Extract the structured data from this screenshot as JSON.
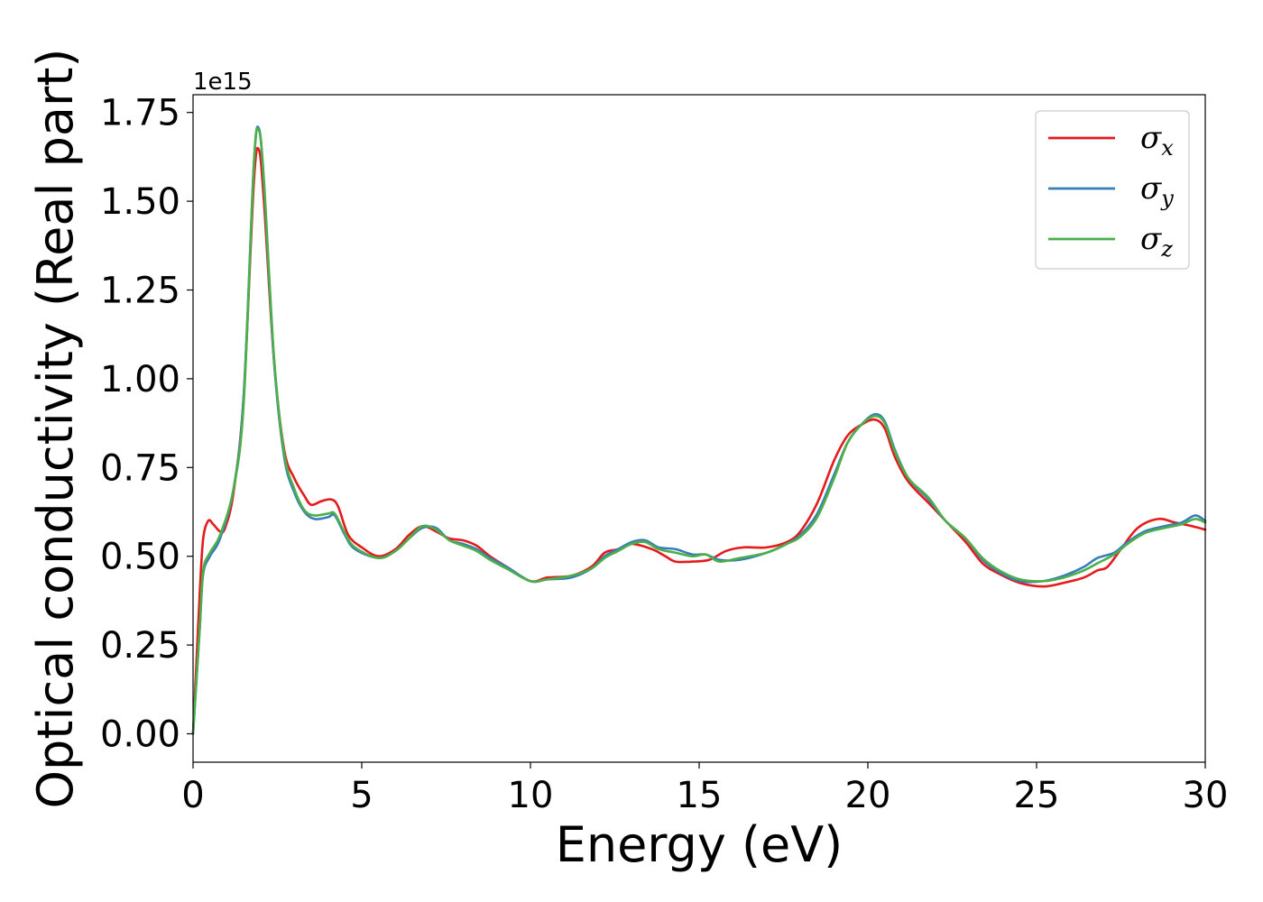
{
  "chart_data": {
    "type": "line",
    "xlabel": "Energy (eV)",
    "ylabel": "Optical conductivity (Real part)",
    "y_offset_label": "1e15",
    "y_multiplier": 1000000000000000.0,
    "xlim": [
      0,
      30
    ],
    "ylim": [
      -0.08,
      1.8
    ],
    "x_ticks": [
      0,
      5,
      10,
      15,
      20,
      25,
      30
    ],
    "x_tick_labels": [
      "0",
      "5",
      "10",
      "15",
      "20",
      "25",
      "30"
    ],
    "y_ticks": [
      0,
      0.25,
      0.5,
      0.75,
      1.0,
      1.25,
      1.5,
      1.75
    ],
    "y_tick_labels": [
      "0.00",
      "0.25",
      "0.50",
      "0.75",
      "1.00",
      "1.25",
      "1.50",
      "1.75"
    ],
    "grid": false,
    "legend_position": "top-right",
    "series": [
      {
        "name": "σx",
        "symbol": "σ",
        "subscript": "x",
        "color": "#e41a1c",
        "points": [
          [
            0,
            0
          ],
          [
            0.1,
            0.2
          ],
          [
            0.2,
            0.4
          ],
          [
            0.3,
            0.55
          ],
          [
            0.45,
            0.6
          ],
          [
            0.6,
            0.59
          ],
          [
            0.8,
            0.57
          ],
          [
            0.95,
            0.58
          ],
          [
            1.2,
            0.68
          ],
          [
            1.5,
            0.95
          ],
          [
            1.8,
            1.55
          ],
          [
            1.95,
            1.645
          ],
          [
            2.1,
            1.5
          ],
          [
            2.4,
            1.05
          ],
          [
            2.7,
            0.8
          ],
          [
            3.0,
            0.72
          ],
          [
            3.3,
            0.67
          ],
          [
            3.5,
            0.645
          ],
          [
            3.8,
            0.655
          ],
          [
            4.1,
            0.66
          ],
          [
            4.3,
            0.64
          ],
          [
            4.6,
            0.56
          ],
          [
            5.0,
            0.525
          ],
          [
            5.5,
            0.5
          ],
          [
            6.0,
            0.52
          ],
          [
            6.4,
            0.56
          ],
          [
            6.8,
            0.585
          ],
          [
            7.2,
            0.57
          ],
          [
            7.6,
            0.55
          ],
          [
            8.0,
            0.545
          ],
          [
            8.4,
            0.53
          ],
          [
            8.8,
            0.5
          ],
          [
            9.3,
            0.47
          ],
          [
            10.0,
            0.43
          ],
          [
            10.5,
            0.44
          ],
          [
            11.2,
            0.445
          ],
          [
            11.8,
            0.47
          ],
          [
            12.2,
            0.51
          ],
          [
            12.6,
            0.52
          ],
          [
            13.0,
            0.535
          ],
          [
            13.6,
            0.52
          ],
          [
            14.0,
            0.5
          ],
          [
            14.3,
            0.485
          ],
          [
            14.8,
            0.485
          ],
          [
            15.3,
            0.49
          ],
          [
            15.8,
            0.515
          ],
          [
            16.3,
            0.525
          ],
          [
            17.0,
            0.525
          ],
          [
            17.6,
            0.54
          ],
          [
            18.0,
            0.57
          ],
          [
            18.5,
            0.65
          ],
          [
            19.0,
            0.77
          ],
          [
            19.4,
            0.84
          ],
          [
            19.8,
            0.87
          ],
          [
            20.2,
            0.885
          ],
          [
            20.5,
            0.86
          ],
          [
            20.8,
            0.78
          ],
          [
            21.2,
            0.71
          ],
          [
            21.8,
            0.65
          ],
          [
            22.3,
            0.6
          ],
          [
            22.9,
            0.54
          ],
          [
            23.4,
            0.48
          ],
          [
            23.9,
            0.45
          ],
          [
            24.5,
            0.425
          ],
          [
            25.2,
            0.415
          ],
          [
            25.8,
            0.425
          ],
          [
            26.4,
            0.44
          ],
          [
            26.8,
            0.46
          ],
          [
            27.1,
            0.47
          ],
          [
            27.5,
            0.52
          ],
          [
            28.0,
            0.58
          ],
          [
            28.6,
            0.605
          ],
          [
            29.1,
            0.595
          ],
          [
            29.6,
            0.585
          ],
          [
            30.0,
            0.575
          ]
        ]
      },
      {
        "name": "σy",
        "symbol": "σ",
        "subscript": "y",
        "color": "#377eb8",
        "points": [
          [
            0,
            0
          ],
          [
            0.1,
            0.15
          ],
          [
            0.2,
            0.3
          ],
          [
            0.3,
            0.45
          ],
          [
            0.5,
            0.5
          ],
          [
            0.8,
            0.55
          ],
          [
            1.2,
            0.69
          ],
          [
            1.5,
            0.95
          ],
          [
            1.8,
            1.6
          ],
          [
            1.95,
            1.705
          ],
          [
            2.1,
            1.55
          ],
          [
            2.4,
            1.05
          ],
          [
            2.7,
            0.78
          ],
          [
            3.0,
            0.68
          ],
          [
            3.3,
            0.625
          ],
          [
            3.6,
            0.605
          ],
          [
            4.0,
            0.61
          ],
          [
            4.2,
            0.615
          ],
          [
            4.5,
            0.56
          ],
          [
            4.8,
            0.52
          ],
          [
            5.5,
            0.495
          ],
          [
            6.0,
            0.515
          ],
          [
            6.4,
            0.55
          ],
          [
            6.8,
            0.58
          ],
          [
            7.2,
            0.58
          ],
          [
            7.6,
            0.545
          ],
          [
            8.0,
            0.535
          ],
          [
            8.4,
            0.52
          ],
          [
            8.8,
            0.495
          ],
          [
            9.3,
            0.47
          ],
          [
            10.0,
            0.43
          ],
          [
            10.5,
            0.435
          ],
          [
            11.2,
            0.44
          ],
          [
            11.8,
            0.465
          ],
          [
            12.2,
            0.5
          ],
          [
            12.6,
            0.52
          ],
          [
            13.0,
            0.54
          ],
          [
            13.4,
            0.545
          ],
          [
            13.8,
            0.525
          ],
          [
            14.3,
            0.52
          ],
          [
            14.8,
            0.505
          ],
          [
            15.2,
            0.505
          ],
          [
            15.6,
            0.49
          ],
          [
            16.2,
            0.49
          ],
          [
            17.0,
            0.51
          ],
          [
            17.6,
            0.535
          ],
          [
            18.0,
            0.56
          ],
          [
            18.5,
            0.62
          ],
          [
            19.0,
            0.73
          ],
          [
            19.4,
            0.82
          ],
          [
            19.8,
            0.87
          ],
          [
            20.2,
            0.9
          ],
          [
            20.5,
            0.88
          ],
          [
            20.8,
            0.8
          ],
          [
            21.2,
            0.72
          ],
          [
            21.8,
            0.66
          ],
          [
            22.3,
            0.6
          ],
          [
            22.9,
            0.55
          ],
          [
            23.4,
            0.49
          ],
          [
            23.9,
            0.455
          ],
          [
            24.5,
            0.43
          ],
          [
            25.2,
            0.43
          ],
          [
            25.8,
            0.445
          ],
          [
            26.4,
            0.47
          ],
          [
            26.8,
            0.495
          ],
          [
            27.3,
            0.51
          ],
          [
            27.7,
            0.54
          ],
          [
            28.2,
            0.57
          ],
          [
            28.8,
            0.585
          ],
          [
            29.3,
            0.595
          ],
          [
            29.7,
            0.615
          ],
          [
            30.0,
            0.6
          ]
        ]
      },
      {
        "name": "σz",
        "symbol": "σ",
        "subscript": "z",
        "color": "#4daf4a",
        "points": [
          [
            0,
            0
          ],
          [
            0.1,
            0.15
          ],
          [
            0.2,
            0.3
          ],
          [
            0.3,
            0.46
          ],
          [
            0.5,
            0.51
          ],
          [
            0.8,
            0.56
          ],
          [
            1.2,
            0.69
          ],
          [
            1.5,
            0.93
          ],
          [
            1.8,
            1.6
          ],
          [
            1.95,
            1.7
          ],
          [
            2.1,
            1.56
          ],
          [
            2.4,
            1.06
          ],
          [
            2.7,
            0.79
          ],
          [
            3.0,
            0.69
          ],
          [
            3.3,
            0.63
          ],
          [
            3.6,
            0.615
          ],
          [
            4.0,
            0.62
          ],
          [
            4.2,
            0.62
          ],
          [
            4.5,
            0.565
          ],
          [
            4.8,
            0.525
          ],
          [
            5.5,
            0.495
          ],
          [
            6.0,
            0.515
          ],
          [
            6.4,
            0.55
          ],
          [
            6.8,
            0.585
          ],
          [
            7.2,
            0.575
          ],
          [
            7.6,
            0.545
          ],
          [
            8.0,
            0.53
          ],
          [
            8.4,
            0.515
          ],
          [
            8.8,
            0.49
          ],
          [
            9.3,
            0.465
          ],
          [
            10.0,
            0.43
          ],
          [
            10.5,
            0.435
          ],
          [
            11.2,
            0.445
          ],
          [
            11.8,
            0.465
          ],
          [
            12.2,
            0.495
          ],
          [
            12.6,
            0.515
          ],
          [
            13.0,
            0.535
          ],
          [
            13.4,
            0.54
          ],
          [
            13.8,
            0.52
          ],
          [
            14.3,
            0.51
          ],
          [
            14.8,
            0.5
          ],
          [
            15.2,
            0.505
          ],
          [
            15.6,
            0.485
          ],
          [
            16.2,
            0.495
          ],
          [
            17.0,
            0.51
          ],
          [
            17.6,
            0.535
          ],
          [
            18.0,
            0.555
          ],
          [
            18.5,
            0.61
          ],
          [
            19.0,
            0.72
          ],
          [
            19.4,
            0.82
          ],
          [
            19.8,
            0.87
          ],
          [
            20.2,
            0.895
          ],
          [
            20.5,
            0.875
          ],
          [
            20.8,
            0.795
          ],
          [
            21.2,
            0.72
          ],
          [
            21.8,
            0.665
          ],
          [
            22.3,
            0.6
          ],
          [
            22.9,
            0.55
          ],
          [
            23.4,
            0.495
          ],
          [
            23.9,
            0.46
          ],
          [
            24.5,
            0.435
          ],
          [
            25.2,
            0.43
          ],
          [
            25.8,
            0.44
          ],
          [
            26.4,
            0.46
          ],
          [
            26.8,
            0.48
          ],
          [
            27.3,
            0.505
          ],
          [
            27.7,
            0.535
          ],
          [
            28.2,
            0.565
          ],
          [
            28.8,
            0.58
          ],
          [
            29.3,
            0.59
          ],
          [
            29.7,
            0.605
          ],
          [
            30.0,
            0.595
          ]
        ]
      }
    ]
  }
}
